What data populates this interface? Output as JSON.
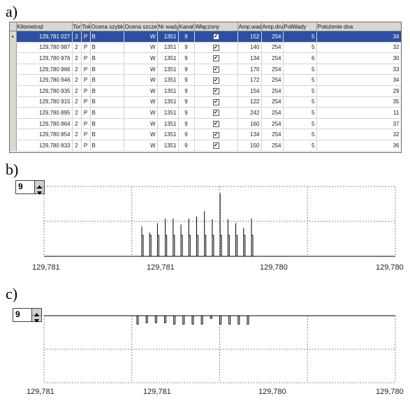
{
  "panels": {
    "a": "a)",
    "b": "b)",
    "c": "c)"
  },
  "table": {
    "headers": [
      "Kilometraż",
      "Tor",
      "Tok",
      "Ocena szybki",
      "Ocena szczeg.",
      "Nr wady",
      "Kanał",
      "Włączony",
      "Amp.wady",
      "Amp.dna",
      "PołWady",
      "Położenie dna"
    ],
    "rows": [
      [
        "129,781 027",
        "2",
        "P",
        "B",
        "W",
        "1351",
        "9",
        true,
        "152",
        "254",
        "5",
        "34"
      ],
      [
        "129,780 987",
        "2",
        "P",
        "B",
        "W",
        "1351",
        "9",
        true,
        "140",
        "254",
        "5",
        "32"
      ],
      [
        "129,780 976",
        "2",
        "P",
        "B",
        "W",
        "1351",
        "9",
        true,
        "134",
        "254",
        "6",
        "30"
      ],
      [
        "129,780 966",
        "2",
        "P",
        "B",
        "W",
        "1351",
        "9",
        true,
        "170",
        "254",
        "5",
        "33"
      ],
      [
        "129,780 946",
        "2",
        "P",
        "B",
        "W",
        "1351",
        "9",
        true,
        "172",
        "254",
        "5",
        "34"
      ],
      [
        "129,780 935",
        "2",
        "P",
        "B",
        "W",
        "1351",
        "9",
        true,
        "154",
        "254",
        "5",
        "29"
      ],
      [
        "129,780 915",
        "2",
        "P",
        "B",
        "W",
        "1351",
        "9",
        true,
        "122",
        "254",
        "5",
        "35"
      ],
      [
        "129,780 895",
        "2",
        "P",
        "B",
        "W",
        "1351",
        "9",
        true,
        "242",
        "254",
        "5",
        "11"
      ],
      [
        "129,780 864",
        "2",
        "P",
        "B",
        "W",
        "1351",
        "9",
        true,
        "160",
        "254",
        "5",
        "37"
      ],
      [
        "129,780 854",
        "2",
        "P",
        "B",
        "W",
        "1351",
        "9",
        true,
        "134",
        "254",
        "5",
        "32"
      ],
      [
        "129,780 833",
        "2",
        "P",
        "B",
        "W",
        "1351",
        "9",
        true,
        "150",
        "254",
        "5",
        "36"
      ]
    ],
    "selected_row": 0
  },
  "chart_b": {
    "spinner_value": "9",
    "x_ticks": [
      "129,781",
      "129,781",
      "129,780",
      "129,780"
    ],
    "chart_data": {
      "type": "bar",
      "direction": "up",
      "values": [
        0.45,
        0.36,
        0.5,
        0.57,
        0.57,
        0.48,
        0.57,
        0.6,
        0.68,
        0.56,
        0.95,
        0.56,
        0.5,
        0.43,
        0.57
      ]
    }
  },
  "chart_c": {
    "spinner_value": "9",
    "x_ticks": [
      "129,781",
      "129,781",
      "129,780",
      "129,780"
    ],
    "chart_data": {
      "type": "bar",
      "direction": "down",
      "values": [
        0.3,
        0.25,
        0.25,
        0.25,
        0.3,
        0.3,
        0.3,
        0.3,
        0.1,
        0.3,
        0.3,
        0.3,
        0.3
      ]
    }
  },
  "colors": {
    "selection": "#2d4fa3",
    "grid_dash": "#8a8a8a",
    "bar": "#000000",
    "header": "#d8d8d0"
  }
}
